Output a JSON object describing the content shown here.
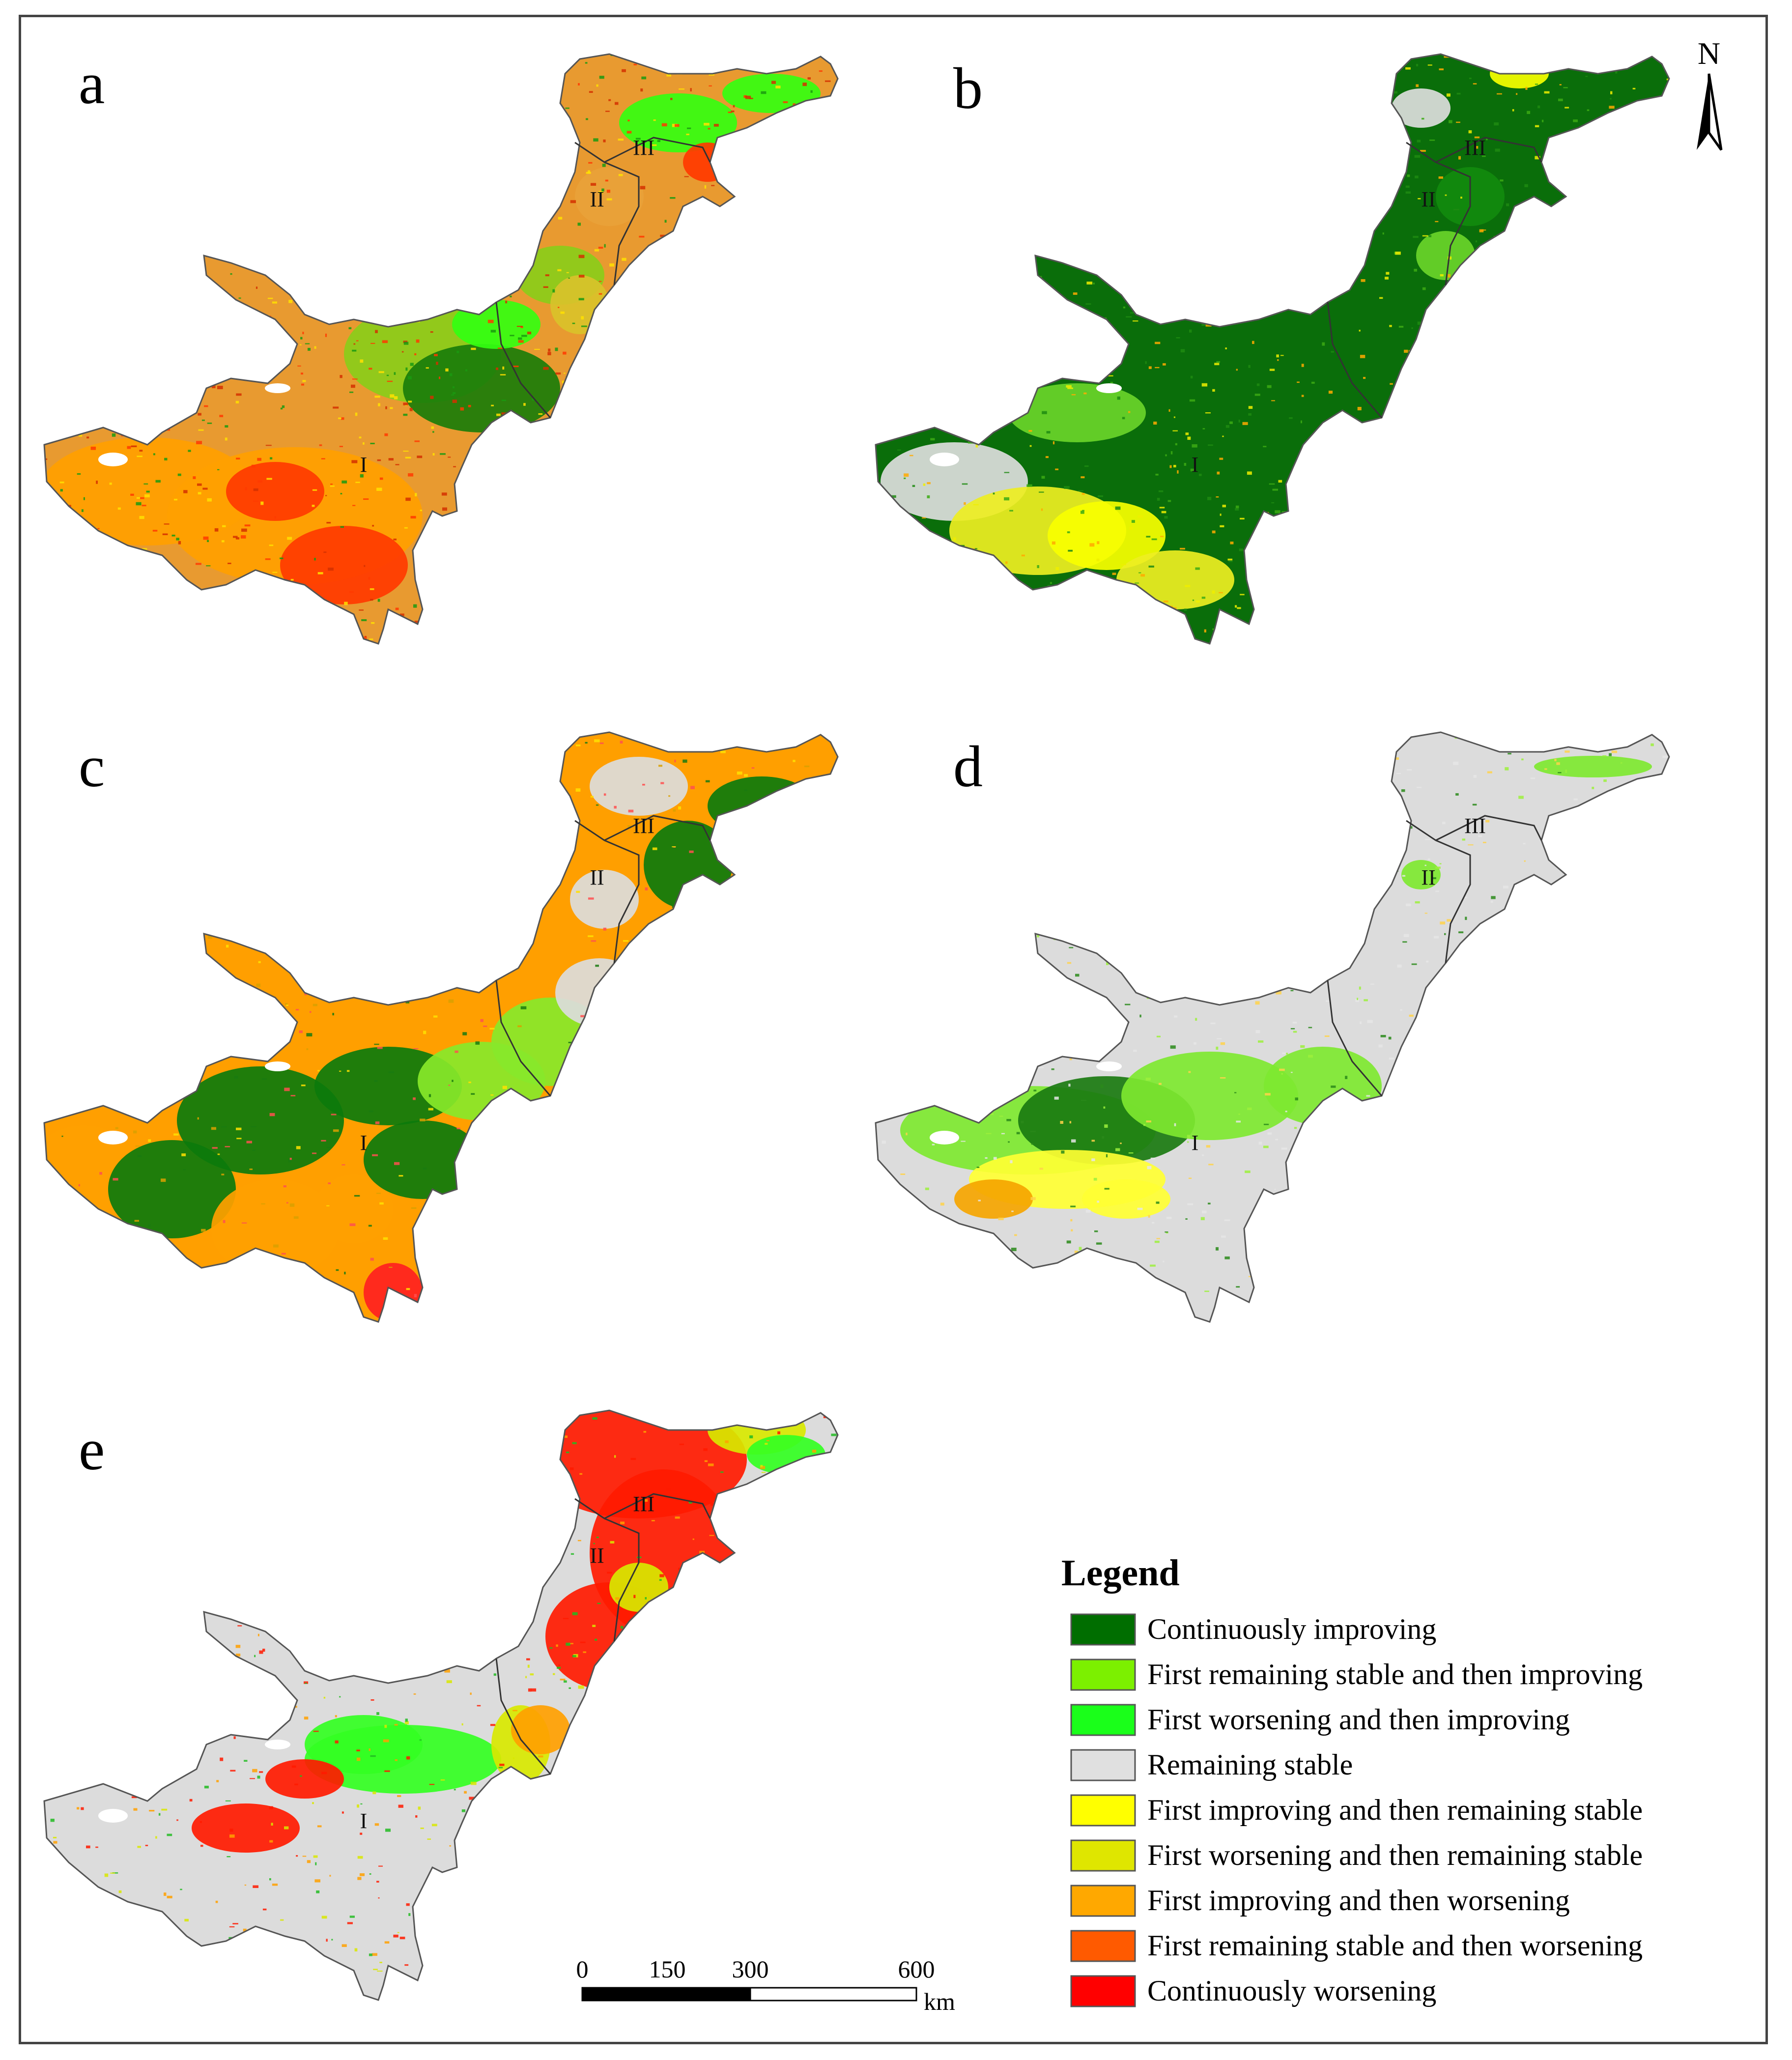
{
  "panels": [
    {
      "letter": "a",
      "palette": [
        "#ff9f00",
        "#e8a23a",
        "#ff3a00",
        "#8acd1a",
        "#1a7d0a",
        "#33ff11",
        "#d9c22a"
      ]
    },
    {
      "letter": "b",
      "palette": [
        "#0a6e0a",
        "#128a0e",
        "#6ad42a",
        "#eeee22",
        "#dddddd",
        "#f8ff00",
        "#1f8b12"
      ]
    },
    {
      "letter": "c",
      "palette": [
        "#ff9f00",
        "#0c7a0c",
        "#88e82a",
        "#dcdcdc",
        "#f0f000",
        "#ff2020",
        "#e0a020"
      ]
    },
    {
      "letter": "d",
      "palette": [
        "#dcdcdc",
        "#7ee830",
        "#1a7a10",
        "#ffff33",
        "#f5a500",
        "#e3e3e3",
        "#cccccc"
      ]
    },
    {
      "letter": "e",
      "palette": [
        "#dcdcdc",
        "#ff1a00",
        "#33ff22",
        "#d8e800",
        "#ff9f00",
        "#e0e0e0",
        "#22bb22"
      ]
    }
  ],
  "region_labels": [
    "I",
    "II",
    "III"
  ],
  "north_arrow": {
    "label": "N"
  },
  "scale_bar": {
    "ticks": [
      "0",
      "150",
      "300",
      "600"
    ],
    "unit": "km"
  },
  "legend": {
    "title": "Legend",
    "items": [
      {
        "label": "Continuously improving",
        "color": "#006e00"
      },
      {
        "label": "First remaining stable and then improving",
        "color": "#7cf000"
      },
      {
        "label": "First worsening and then improving",
        "color": "#1aff1a"
      },
      {
        "label": "Remaining stable",
        "color": "#e0e0e0"
      },
      {
        "label": "First improving and then remaining stable",
        "color": "#ffff00"
      },
      {
        "label": "First worsening and then remaining stable",
        "color": "#dfe600"
      },
      {
        "label": "First improving and then worsening",
        "color": "#ffa800"
      },
      {
        "label": "First remaining stable and then worsening",
        "color": "#ff5a00"
      },
      {
        "label": "Continuously worsening",
        "color": "#ff0000"
      }
    ]
  }
}
